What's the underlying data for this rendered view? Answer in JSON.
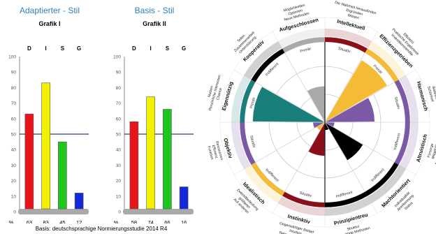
{
  "chart_data": [
    {
      "type": "bar",
      "title": "Adaptierter - Stil",
      "subtitle": "Grafik I",
      "categories": [
        "D",
        "I",
        "S",
        "G"
      ],
      "values": [
        63,
        83,
        45,
        12
      ],
      "colors": [
        "#e8141b",
        "#f4f100",
        "#1ec61e",
        "#1328d8"
      ],
      "ylim": [
        0,
        100
      ],
      "yticks": [
        0,
        10,
        20,
        30,
        40,
        50,
        60,
        70,
        80,
        90,
        100
      ],
      "reference_line": 50,
      "row_label": "%"
    },
    {
      "type": "bar",
      "title": "Basis - Stil",
      "subtitle": "Grafik II",
      "categories": [
        "D",
        "I",
        "S",
        "G"
      ],
      "values": [
        58,
        74,
        66,
        16
      ],
      "colors": [
        "#e8141b",
        "#f4f100",
        "#1ec61e",
        "#1328d8"
      ],
      "ylim": [
        0,
        100
      ],
      "yticks": [
        0,
        10,
        20,
        30,
        40,
        50,
        60,
        70,
        80,
        90,
        100
      ],
      "reference_line": 50,
      "row_label": "%"
    }
  ],
  "footnote": "Basis: deutschsprachige Normierungsstudie 2014 R4",
  "wheel": {
    "segments": [
      {
        "label": "Intellektuell",
        "ring": "Situativ",
        "value": 0.0,
        "color": "#8b0e1b",
        "fill_color": null,
        "keywords": [
          "Die Wahrheit herausfinden",
          "Ergründen",
          "Wissen"
        ]
      },
      {
        "label": "Effizienzgetrieben",
        "ring": "Primär",
        "value": 0.9,
        "color": "#f5bb34",
        "fill_color": "#f5bb34",
        "keywords": [
          "Effizienz",
          "Praktische Ergebnisse",
          "Investitionsrendite"
        ]
      },
      {
        "label": "Harmonisch",
        "ring": "Situativ",
        "value": 0.62,
        "color": "#7b59a6",
        "fill_color": "#7b59a6",
        "keywords": [
          "Erfahrung",
          "Balance",
          "Schönheit"
        ]
      },
      {
        "label": "Altruistisch",
        "ring": "Indifferent",
        "value": 0.12,
        "color": "#7b59a6",
        "fill_color": "#7b59a6",
        "keywords": [
          "Anderen helfen",
          "Mitgefühl",
          "Fürsorge"
        ]
      },
      {
        "label": "Machtorientiert",
        "ring": "Indifferent",
        "value": 0.55,
        "color": "#000000",
        "fill_color": "#000000",
        "keywords": [
          "Status",
          "Anerkennung",
          "Individualität"
        ]
      },
      {
        "label": "Prinzipientreu",
        "ring": "Indifferent",
        "value": 0.1,
        "color": "#000000",
        "fill_color": "#000000",
        "keywords": [
          "Ideologie",
          "Bewährte Methoden",
          "Struktur"
        ]
      },
      {
        "label": "Instinktiv",
        "ring": "Situativ",
        "value": 0.42,
        "color": "#8b0e1b",
        "fill_color": "#8b0e1b",
        "keywords": [
          "Relevantes Wissen",
          "Intuition",
          "Gegenwärtiger Bedarf"
        ]
      },
      {
        "label": "Idealistisch",
        "ring": "Indifferent",
        "value": 0.12,
        "color": "#f5bb34",
        "fill_color": "#f5bb34",
        "keywords": [
          "Auf anderen",
          "größeren",
          "Zweck/Bedeutung"
        ]
      },
      {
        "label": "Objektiv",
        "ring": "Situativ",
        "value": 0.15,
        "color": "#7b59a6",
        "fill_color": "#7b59a6",
        "keywords": [
          "Funktion",
          "Effizienz",
          "Ressourcen"
        ]
      },
      {
        "label": "Eigennützig",
        "ring": "Primär",
        "value": 0.9,
        "color": "#1a7e7b",
        "fill_color": "#1a7e7b",
        "keywords": [
          "Nutzen",
          "Persönliche Interessen",
          "Chance"
        ]
      },
      {
        "label": "Kooperativ",
        "ring": "Indifferent",
        "value": 0.0,
        "color": "#000000",
        "fill_color": null,
        "keywords": [
          "Teilen",
          "Zusammenarbeit",
          "Unterstützung"
        ]
      },
      {
        "label": "Aufgeschlossen",
        "ring": "Primär",
        "value": 0.45,
        "color": "#aaaaaa",
        "fill_color": "#aaaaaa",
        "keywords": [
          "Möglichkeiten",
          "Optionen",
          "Neue Methoden"
        ]
      }
    ]
  }
}
